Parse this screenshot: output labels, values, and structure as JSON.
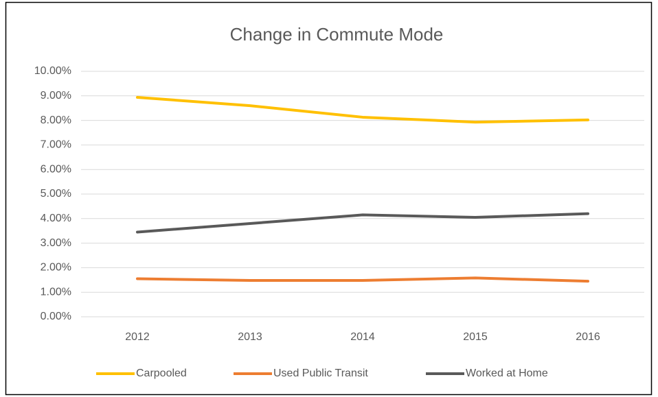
{
  "chart_data": {
    "type": "line",
    "title": "Change in Commute Mode",
    "categories": [
      "2012",
      "2013",
      "2014",
      "2015",
      "2016"
    ],
    "series": [
      {
        "name": "Carpooled",
        "color": "#ffc000",
        "values": [
          8.94,
          8.6,
          8.13,
          7.93,
          8.02
        ]
      },
      {
        "name": "Used Public Transit",
        "color": "#ed7d31",
        "values": [
          1.55,
          1.48,
          1.48,
          1.58,
          1.45
        ]
      },
      {
        "name": "Worked at Home",
        "color": "#595959",
        "values": [
          3.45,
          3.8,
          4.15,
          4.05,
          4.2
        ]
      }
    ],
    "ylim": [
      0,
      10
    ],
    "yticks": [
      {
        "value": 0,
        "label": "0.00%"
      },
      {
        "value": 1,
        "label": "1.00%"
      },
      {
        "value": 2,
        "label": "2.00%"
      },
      {
        "value": 3,
        "label": "3.00%"
      },
      {
        "value": 4,
        "label": "4.00%"
      },
      {
        "value": 5,
        "label": "5.00%"
      },
      {
        "value": 6,
        "label": "6.00%"
      },
      {
        "value": 7,
        "label": "7.00%"
      },
      {
        "value": 8,
        "label": "8.00%"
      },
      {
        "value": 9,
        "label": "9.00%"
      },
      {
        "value": 10,
        "label": "10.00%"
      }
    ],
    "grid": true,
    "legend": "bottom"
  }
}
